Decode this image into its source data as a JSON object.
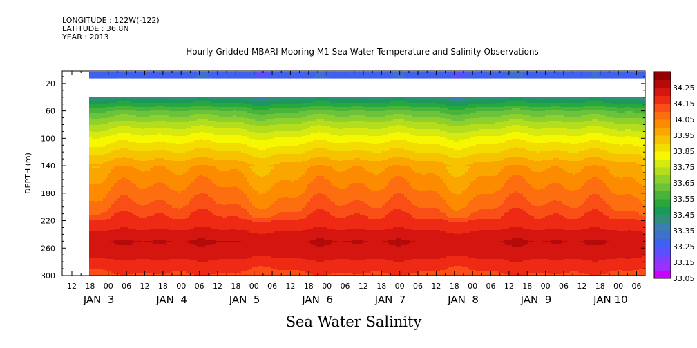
{
  "header": {
    "longitude": "LONGITUDE : 122W(-122)",
    "latitude": "LATITUDE : 36.8N",
    "year": "YEAR : 2013"
  },
  "footer": {
    "variable": "Sea Water Salinity"
  },
  "chart_data": {
    "type": "heatmap",
    "title": "Hourly Gridded MBARI Mooring M1 Sea Water Temperature and Salinity Observations",
    "ylabel": "DEPTH (m)",
    "ylim": [
      300,
      2
    ],
    "y_inverted": true,
    "y_ticks": [
      20,
      60,
      100,
      140,
      180,
      220,
      260,
      300
    ],
    "x_hour_ticks": [
      "12",
      "18",
      "00",
      "06",
      "12",
      "18",
      "00",
      "06",
      "12",
      "18",
      "00",
      "06",
      "12",
      "18",
      "00",
      "06",
      "12",
      "18",
      "00",
      "06",
      "12",
      "18",
      "00",
      "06",
      "12",
      "18",
      "00",
      "06",
      "12",
      "18",
      "00",
      "06"
    ],
    "x_day_labels": [
      "JAN  3",
      "JAN  4",
      "JAN  5",
      "JAN  6",
      "JAN  7",
      "JAN  8",
      "JAN  9",
      "JAN 10"
    ],
    "time_range_hours": [
      "JAN 2 06:00",
      "JAN 10 12:00"
    ],
    "data_start_hour": "JAN 2 18:00",
    "colorbar": {
      "labels": [
        "34.25",
        "34.15",
        "34.05",
        "33.95",
        "33.85",
        "33.75",
        "33.65",
        "33.55",
        "33.45",
        "33.35",
        "33.25",
        "33.15",
        "33.05"
      ],
      "levels": [
        33.05,
        33.1,
        33.15,
        33.2,
        33.25,
        33.3,
        33.35,
        33.4,
        33.45,
        33.5,
        33.55,
        33.6,
        33.65,
        33.7,
        33.75,
        33.8,
        33.85,
        33.9,
        33.95,
        34.0,
        34.05,
        34.1,
        34.15,
        34.2,
        34.25,
        34.3
      ],
      "colors": [
        "#cc00ff",
        "#9b30ff",
        "#7a40ff",
        "#5a50ff",
        "#4060ee",
        "#3f6fcf",
        "#3c7db3",
        "#2f8f7a",
        "#1a9a5a",
        "#28a83c",
        "#48b53a",
        "#6ac33a",
        "#8fd12c",
        "#b4dd1e",
        "#d7ea10",
        "#f7f700",
        "#f3dd00",
        "#f7c200",
        "#fba600",
        "#fd8b00",
        "#fd6e10",
        "#f94e16",
        "#ee2a14",
        "#d41510",
        "#b40a0a",
        "#950000"
      ]
    },
    "depth_profile": [
      {
        "depth": 10,
        "value": 33.28
      },
      {
        "depth": 40,
        "value": 33.42
      },
      {
        "depth": 60,
        "value": 33.6
      },
      {
        "depth": 80,
        "value": 33.72
      },
      {
        "depth": 100,
        "value": 33.82
      },
      {
        "depth": 120,
        "value": 33.9
      },
      {
        "depth": 140,
        "value": 33.98
      },
      {
        "depth": 170,
        "value": 34.04
      },
      {
        "depth": 200,
        "value": 34.1
      },
      {
        "depth": 230,
        "value": 34.19
      },
      {
        "depth": 250,
        "value": 34.25
      },
      {
        "depth": 270,
        "value": 34.22
      },
      {
        "depth": 285,
        "value": 34.17
      },
      {
        "depth": 300,
        "value": 34.14
      }
    ],
    "gap_depths": [
      15,
      40
    ],
    "grid": false
  }
}
